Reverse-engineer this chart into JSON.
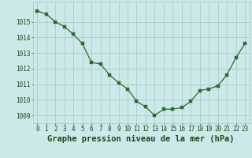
{
  "x": [
    0,
    1,
    2,
    3,
    4,
    5,
    6,
    7,
    8,
    9,
    10,
    11,
    12,
    13,
    14,
    15,
    16,
    17,
    18,
    19,
    20,
    21,
    22,
    23
  ],
  "y": [
    1015.7,
    1015.5,
    1015.0,
    1014.7,
    1014.2,
    1013.6,
    1012.4,
    1012.3,
    1011.6,
    1011.1,
    1010.7,
    1009.9,
    1009.55,
    1009.0,
    1009.4,
    1009.4,
    1009.5,
    1009.9,
    1010.6,
    1010.7,
    1010.9,
    1011.6,
    1012.7,
    1013.6
  ],
  "line_color": "#2d6a2d",
  "marker_color": "#2d6a2d",
  "bg_color": "#cce8e8",
  "grid_color": "#99cccc",
  "xlabel": "Graphe pression niveau de la mer (hPa)",
  "xlabel_color": "#1a4a1a",
  "ylim": [
    1008.5,
    1016.3
  ],
  "yticks": [
    1009,
    1010,
    1011,
    1012,
    1013,
    1014,
    1015
  ],
  "xticks": [
    0,
    1,
    2,
    3,
    4,
    5,
    6,
    7,
    8,
    9,
    10,
    11,
    12,
    13,
    14,
    15,
    16,
    17,
    18,
    19,
    20,
    21,
    22,
    23
  ],
  "tick_label_fontsize": 5.5,
  "xlabel_fontsize": 7.5
}
